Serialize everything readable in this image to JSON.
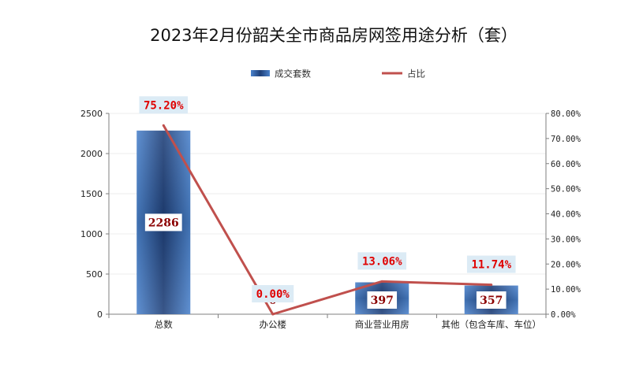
{
  "chart_data": {
    "type": "bar",
    "title": "2023年2月份韶关全市商品房网签用途分析（套）",
    "categories": [
      "总数",
      "办公楼",
      "商业营业用房",
      "其他（包含车库、车位）"
    ],
    "series": [
      {
        "name": "成交套数",
        "type": "bar",
        "axis": "left",
        "color": "#3f74bd",
        "values": [
          2286,
          0,
          397,
          357
        ],
        "labels": [
          "2286",
          "0",
          "397",
          "357"
        ]
      },
      {
        "name": "占比",
        "type": "line",
        "axis": "right",
        "color": "#c0504d",
        "values": [
          75.2,
          0.0,
          13.06,
          11.74
        ],
        "labels": [
          "75.20%",
          "0.00%",
          "13.06%",
          "11.74%"
        ]
      }
    ],
    "y_left": {
      "min": 0,
      "max": 2500,
      "ticks": [
        "0",
        "500",
        "1000",
        "1500",
        "2000",
        "2500"
      ]
    },
    "y_right": {
      "min": 0,
      "max": 80,
      "ticks": [
        "0.00%",
        "10.00%",
        "20.00%",
        "30.00%",
        "40.00%",
        "50.00%",
        "60.00%",
        "70.00%",
        "80.00%"
      ]
    },
    "grid": true,
    "legend_position": "top-center"
  }
}
